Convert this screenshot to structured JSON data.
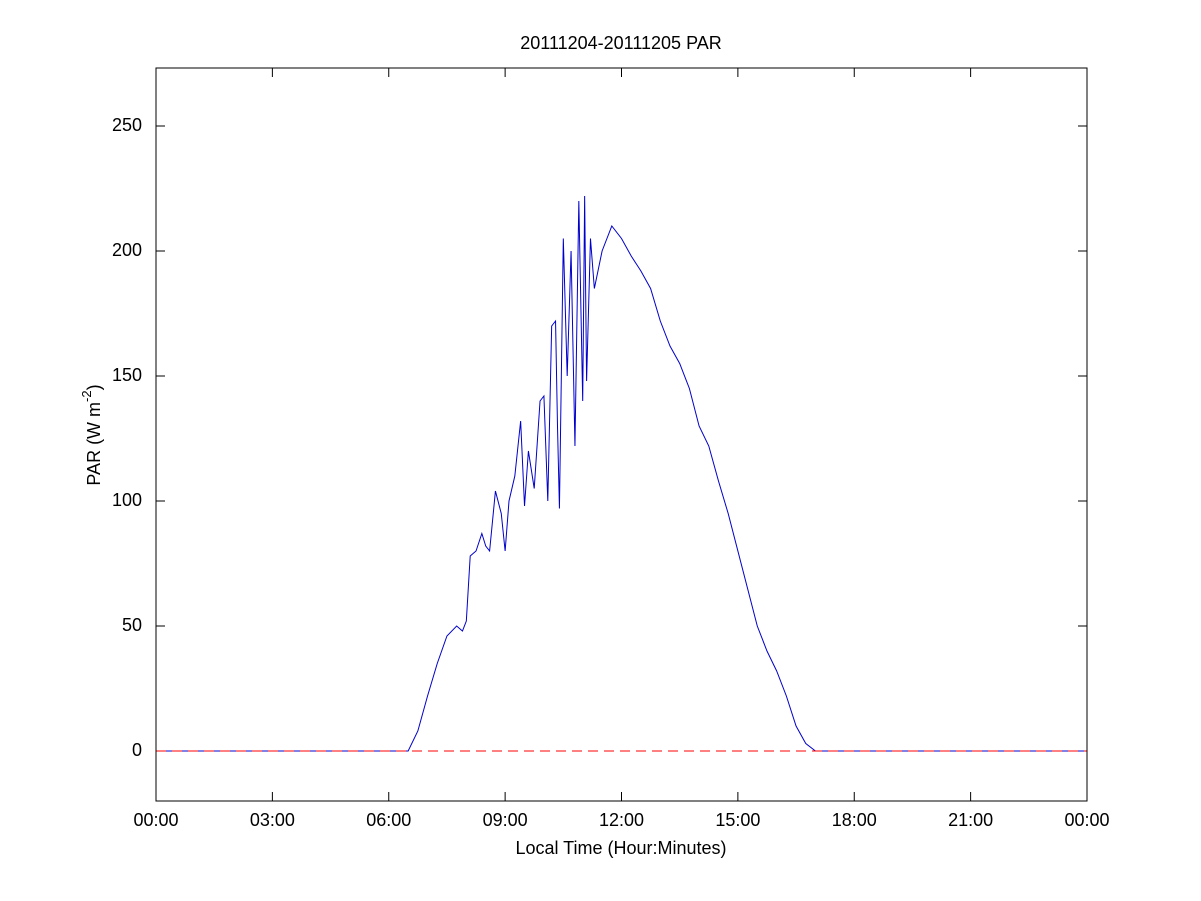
{
  "chart_data": {
    "type": "line",
    "title": "20111204-20111205 PAR",
    "xlabel": "Local Time (Hour:Minutes)",
    "ylabel": [
      "PAR (W m",
      "-2",
      ")"
    ],
    "x": [
      0,
      6.5,
      6.75,
      7.0,
      7.25,
      7.5,
      7.75,
      7.9,
      8.0,
      8.1,
      8.25,
      8.4,
      8.5,
      8.6,
      8.75,
      8.9,
      9.0,
      9.1,
      9.25,
      9.4,
      9.5,
      9.6,
      9.75,
      9.9,
      10.0,
      10.1,
      10.2,
      10.3,
      10.35,
      10.4,
      10.5,
      10.6,
      10.7,
      10.8,
      10.9,
      11.0,
      11.05,
      11.1,
      11.2,
      11.3,
      11.5,
      11.75,
      12.0,
      12.25,
      12.5,
      12.75,
      13.0,
      13.25,
      13.5,
      13.75,
      14.0,
      14.25,
      14.5,
      14.75,
      15.0,
      15.25,
      15.5,
      15.75,
      16.0,
      16.25,
      16.5,
      16.75,
      17.0,
      24
    ],
    "values": [
      0,
      0,
      8,
      22,
      35,
      46,
      50,
      48,
      52,
      78,
      80,
      87,
      82,
      80,
      104,
      95,
      80,
      100,
      110,
      132,
      98,
      120,
      105,
      140,
      142,
      100,
      170,
      172,
      130,
      97,
      205,
      150,
      200,
      122,
      220,
      140,
      222,
      148,
      205,
      185,
      200,
      210,
      205,
      198,
      192,
      185,
      172,
      162,
      155,
      145,
      130,
      122,
      108,
      95,
      80,
      65,
      50,
      40,
      32,
      22,
      10,
      3,
      0,
      0
    ],
    "color": "#0000cc",
    "reference_line": {
      "value": 0,
      "color": "#ff0000",
      "style": "dashed"
    },
    "xlim": [
      0,
      24
    ],
    "xticks": [
      {
        "value": 0,
        "label": "00:00"
      },
      {
        "value": 3,
        "label": "03:00"
      },
      {
        "value": 6,
        "label": "06:00"
      },
      {
        "value": 9,
        "label": "09:00"
      },
      {
        "value": 12,
        "label": "12:00"
      },
      {
        "value": 15,
        "label": "15:00"
      },
      {
        "value": 18,
        "label": "18:00"
      },
      {
        "value": 21,
        "label": "21:00"
      },
      {
        "value": 24,
        "label": "00:00"
      }
    ],
    "ylim": [
      -20,
      273.2
    ],
    "yticks": [
      0,
      50,
      100,
      150,
      200,
      250
    ],
    "grid": false
  }
}
